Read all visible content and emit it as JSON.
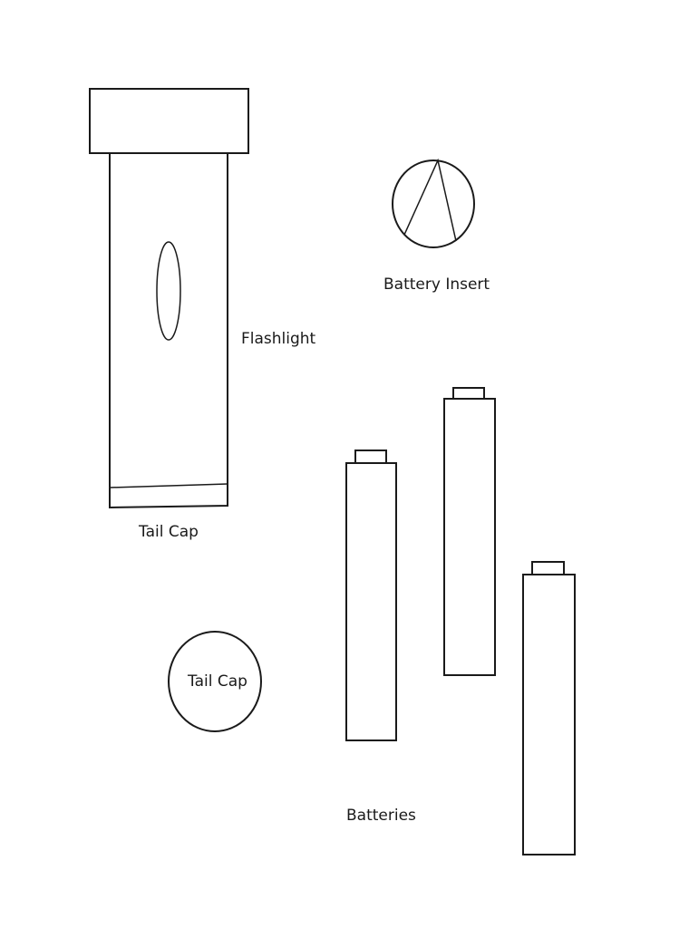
{
  "labels": {
    "flashlight": "Flashlight",
    "tail_cap_on_body": "Tail Cap",
    "tail_cap_piece": "Tail Cap",
    "battery_insert": "Battery Insert",
    "batteries": "Batteries"
  }
}
